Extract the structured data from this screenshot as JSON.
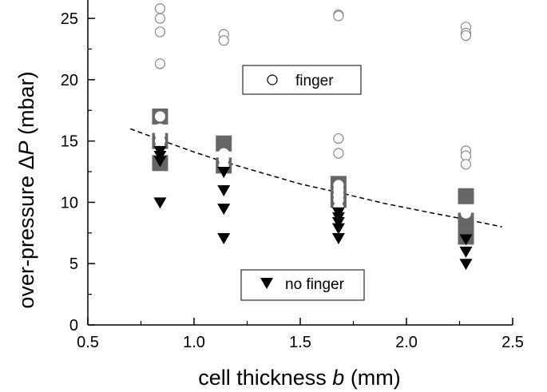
{
  "chart_data": {
    "type": "scatter",
    "xlabel": {
      "prefix": "cell thickness ",
      "var": "b",
      "suffix": "  (mm)"
    },
    "ylabel": {
      "prefix": "over-pressure ",
      "symbol": "Δ",
      "var": "P",
      "suffix": "  (mbar)"
    },
    "xlim": [
      0.5,
      2.5
    ],
    "ylim": [
      0,
      26.5
    ],
    "xticks": [
      0.5,
      1.0,
      1.5,
      2.0,
      2.5
    ],
    "xtick_labels": [
      "0.5",
      "1.0",
      "1.5",
      "2.0",
      "2.5"
    ],
    "yticks": [
      0,
      5,
      10,
      15,
      20,
      25
    ],
    "ytick_labels": [
      "0",
      "5",
      "10",
      "15",
      "20",
      "25"
    ],
    "grid": false,
    "legend": [
      {
        "label": "finger",
        "marker": "open-circle",
        "placement": "upper-middle"
      },
      {
        "label": "no finger",
        "marker": "filled-down-triangle",
        "placement": "lower-middle"
      }
    ],
    "colors": {
      "square": "#666666",
      "triangle": "#000000",
      "circle_edge": "#888888",
      "fit": "#000000"
    },
    "series": [
      {
        "marker": "filled-square",
        "points": [
          [
            0.84,
            17.0
          ],
          [
            0.84,
            15.0
          ],
          [
            0.84,
            13.2
          ],
          [
            1.14,
            14.8
          ],
          [
            1.14,
            13.0
          ],
          [
            1.68,
            11.5
          ],
          [
            1.68,
            10.2
          ],
          [
            2.28,
            10.5
          ],
          [
            2.28,
            8.5
          ],
          [
            2.28,
            7.2
          ]
        ]
      },
      {
        "marker": "open-circle",
        "points": [
          [
            0.84,
            25.8
          ],
          [
            0.84,
            25.0
          ],
          [
            0.84,
            23.9
          ],
          [
            0.84,
            21.3
          ],
          [
            1.14,
            23.7
          ],
          [
            1.14,
            23.2
          ],
          [
            1.68,
            25.3
          ],
          [
            1.68,
            25.2
          ],
          [
            2.28,
            24.3
          ],
          [
            2.28,
            23.8
          ],
          [
            2.28,
            23.6
          ],
          [
            1.68,
            15.2
          ],
          [
            1.68,
            14.0
          ],
          [
            2.28,
            14.2
          ],
          [
            2.28,
            13.8
          ],
          [
            2.28,
            13.1
          ]
        ]
      },
      {
        "marker": "filled-circle",
        "points": [
          [
            0.84,
            17.0
          ],
          [
            0.84,
            16.0
          ],
          [
            0.84,
            15.5
          ],
          [
            0.84,
            15.0
          ],
          [
            0.84,
            14.5
          ],
          [
            0.84,
            14.0
          ],
          [
            1.14,
            14.0
          ],
          [
            1.14,
            13.5
          ],
          [
            1.14,
            13.0
          ],
          [
            1.68,
            11.4
          ],
          [
            1.68,
            11.0
          ],
          [
            1.68,
            10.6
          ],
          [
            1.68,
            10.2
          ],
          [
            1.68,
            9.6
          ],
          [
            2.28,
            9.1
          ]
        ]
      },
      {
        "marker": "filled-down-triangle",
        "points": [
          [
            0.84,
            14.2
          ],
          [
            0.84,
            13.8
          ],
          [
            0.84,
            13.4
          ],
          [
            0.84,
            10.0
          ],
          [
            1.14,
            12.5
          ],
          [
            1.14,
            11.0
          ],
          [
            1.14,
            9.5
          ],
          [
            1.14,
            7.1
          ],
          [
            1.68,
            9.2
          ],
          [
            1.68,
            8.8
          ],
          [
            1.68,
            8.4
          ],
          [
            1.68,
            7.9
          ],
          [
            1.68,
            7.1
          ],
          [
            2.28,
            7.0
          ],
          [
            2.28,
            6.0
          ],
          [
            2.28,
            5.0
          ]
        ]
      }
    ],
    "fit_line": {
      "style": "dashed",
      "points": [
        [
          0.7,
          16.0
        ],
        [
          0.84,
          15.1
        ],
        [
          1.0,
          14.1
        ],
        [
          1.14,
          13.3
        ],
        [
          1.3,
          12.5
        ],
        [
          1.5,
          11.5
        ],
        [
          1.68,
          10.8
        ],
        [
          1.9,
          9.9
        ],
        [
          2.1,
          9.2
        ],
        [
          2.28,
          8.6
        ],
        [
          2.45,
          8.0
        ]
      ]
    }
  }
}
